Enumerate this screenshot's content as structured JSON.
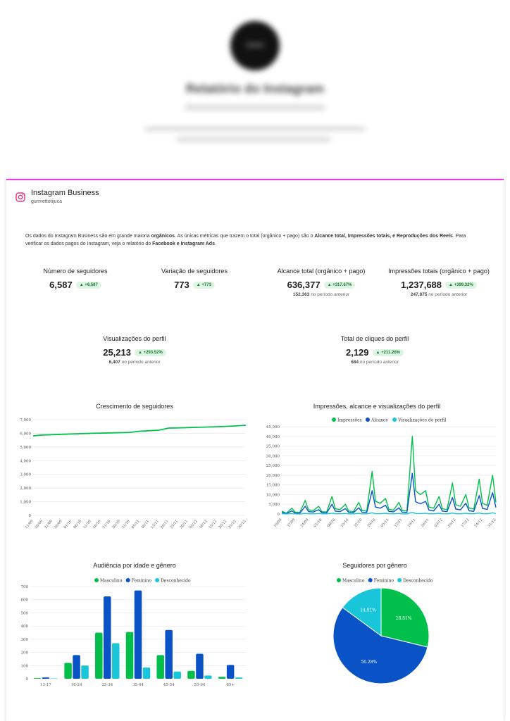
{
  "header": {
    "name": "Relatório do Instagram",
    "colors": {
      "accent": "#e838e0"
    }
  },
  "business": {
    "title": "Instagram Business",
    "handle": "gurmettotijuca"
  },
  "note": {
    "p1": "Os dados do Instagram Business são em grande maioria ",
    "b1": "orgânicos",
    "p2": ". As únicas métricas que trazem o total (orgânico + pago) são o ",
    "b2": "Alcance total, Impressões totais, e Reproduções dos Reels",
    "p3": ". Para verificar os dados pagos do Instagram, veja o relatório do ",
    "b3": "Facebook e Instagram Ads",
    "p4": "."
  },
  "kpis": [
    {
      "title": "Número de seguidores",
      "value": "6,587",
      "badge": "▲ +6,587",
      "prev": "",
      "prev_label": ""
    },
    {
      "title": "Variação de seguidores",
      "value": "773",
      "badge": "▲ +773",
      "prev": "",
      "prev_label": ""
    },
    {
      "title": "Alcance total (orgânico + pago)",
      "value": "636,377",
      "badge": "▲ +317.67%",
      "prev": "152,363",
      "prev_label": "no período anterior"
    },
    {
      "title": "Impressões totais (orgânico + pago)",
      "value": "1,237,688",
      "badge": "▲ +399.32%",
      "prev": "247,875",
      "prev_label": "no período anterior"
    },
    {
      "title": "Visualizações do perfil",
      "value": "25,213",
      "badge": "▲ +293.52%",
      "prev": "6,407",
      "prev_label": "no período anterior"
    },
    {
      "title": "Total de cliques do perfil",
      "value": "2,129",
      "badge": "▲ +211.26%",
      "prev": "684",
      "prev_label": "no período anterior"
    }
  ],
  "colors": {
    "green": "#00c04b",
    "blue": "#0a53c7",
    "cyan": "#19c6d9"
  },
  "chart_data": [
    {
      "type": "line",
      "title": "Crescimento de seguidores",
      "x": [
        "11/09",
        "16/09",
        "21/09",
        "26/09",
        "01/10",
        "06/10",
        "11/10",
        "16/10",
        "21/10",
        "26/10",
        "31/10",
        "05/11",
        "10/11",
        "15/11",
        "20/11",
        "25/11",
        "30/11",
        "05/12",
        "10/12",
        "15/12",
        "20/12",
        "25/12",
        "30/12"
      ],
      "series": [
        {
          "name": "",
          "values": [
            5814,
            5880,
            5905,
            5930,
            5950,
            5975,
            6000,
            6015,
            6030,
            6050,
            6070,
            6150,
            6190,
            6230,
            6380,
            6400,
            6420,
            6440,
            6460,
            6480,
            6510,
            6540,
            6587
          ]
        }
      ],
      "ylim": [
        0,
        7000
      ],
      "yticks": [
        "0",
        "1,000",
        "2,000",
        "3,000",
        "4,000",
        "5,000",
        "6,000",
        "7,000"
      ]
    },
    {
      "type": "line",
      "title": "Impressões, alcance e visualizações do perfil",
      "legend": [
        "Impressões",
        "Alcance",
        "Visualizações do perfil"
      ],
      "x": [
        "10/09",
        "17/09",
        "24/09",
        "01/10",
        "08/10",
        "15/10",
        "22/10",
        "29/10",
        "05/11",
        "12/11",
        "19/11",
        "26/11",
        "03/12",
        "10/12",
        "17/12",
        "24/12",
        "31/12"
      ],
      "series": [
        {
          "name": "Impressões",
          "values": [
            1500,
            3000,
            7000,
            4000,
            9000,
            5000,
            6000,
            22000,
            8000,
            6000,
            40000,
            12000,
            9000,
            16000,
            10000,
            18000,
            20000
          ]
        },
        {
          "name": "Alcance",
          "values": [
            800,
            1600,
            4000,
            2200,
            5000,
            2800,
            3200,
            12000,
            4500,
            3200,
            21000,
            6500,
            5000,
            8500,
            5500,
            9500,
            11000
          ]
        },
        {
          "name": "Visualizações do perfil",
          "values": [
            150,
            200,
            300,
            250,
            400,
            300,
            300,
            600,
            350,
            300,
            900,
            400,
            350,
            500,
            400,
            500,
            600
          ]
        }
      ],
      "ylim": [
        0,
        45000
      ],
      "yticks": [
        "0",
        "5,000",
        "10,000",
        "15,000",
        "20,000",
        "25,000",
        "30,000",
        "35,000",
        "40,000",
        "45,000"
      ]
    },
    {
      "type": "bar",
      "title": "Audiência por idade e gênero",
      "legend": [
        "Masculino",
        "Feminino",
        "Desconhecido"
      ],
      "categories": [
        "13-17",
        "18-24",
        "25-34",
        "35-44",
        "45-54",
        "55-64",
        "65+"
      ],
      "series": [
        {
          "name": "Masculino",
          "values": [
            5,
            120,
            350,
            355,
            180,
            60,
            15
          ]
        },
        {
          "name": "Feminino",
          "values": [
            10,
            180,
            625,
            670,
            370,
            190,
            105
          ]
        },
        {
          "name": "Desconhecido",
          "values": [
            3,
            100,
            270,
            85,
            55,
            25,
            10
          ]
        }
      ],
      "ylim": [
        0,
        700
      ],
      "yticks": [
        "0",
        "100",
        "200",
        "300",
        "400",
        "500",
        "600",
        "700"
      ]
    },
    {
      "type": "pie",
      "title": "Seguidores por gênero",
      "legend": [
        "Masculino",
        "Feminino",
        "Desconhecido"
      ],
      "labels": [
        "28.81%",
        "56.28%",
        "14.91%"
      ],
      "values": [
        28.81,
        56.28,
        14.91
      ]
    }
  ]
}
